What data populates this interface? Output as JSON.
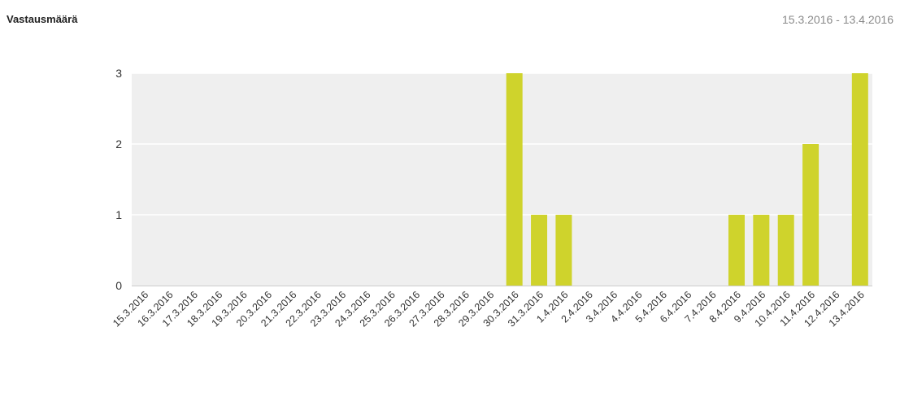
{
  "header": {
    "title": "Vastausmäärä",
    "date_range": "15.3.2016 - 13.4.2016"
  },
  "colors": {
    "bar": "#cfd32c",
    "plot_bg": "#efefef",
    "grid": "#ffffff",
    "axis": "#cccccc"
  },
  "chart_data": {
    "type": "bar",
    "title": "Vastausmäärä",
    "xlabel": "",
    "ylabel": "",
    "ylim": [
      0,
      3
    ],
    "yticks": [
      0,
      1,
      2,
      3
    ],
    "grid": true,
    "categories": [
      "15.3.2016",
      "16.3.2016",
      "17.3.2016",
      "18.3.2016",
      "19.3.2016",
      "20.3.2016",
      "21.3.2016",
      "22.3.2016",
      "23.3.2016",
      "24.3.2016",
      "25.3.2016",
      "26.3.2016",
      "27.3.2016",
      "28.3.2016",
      "29.3.2016",
      "30.3.2016",
      "31.3.2016",
      "1.4.2016",
      "2.4.2016",
      "3.4.2016",
      "4.4.2016",
      "5.4.2016",
      "6.4.2016",
      "7.4.2016",
      "8.4.2016",
      "9.4.2016",
      "10.4.2016",
      "11.4.2016",
      "12.4.2016",
      "13.4.2016"
    ],
    "values": [
      0,
      0,
      0,
      0,
      0,
      0,
      0,
      0,
      0,
      0,
      0,
      0,
      0,
      0,
      0,
      3,
      1,
      1,
      0,
      0,
      0,
      0,
      0,
      0,
      1,
      1,
      1,
      2,
      0,
      3
    ]
  }
}
